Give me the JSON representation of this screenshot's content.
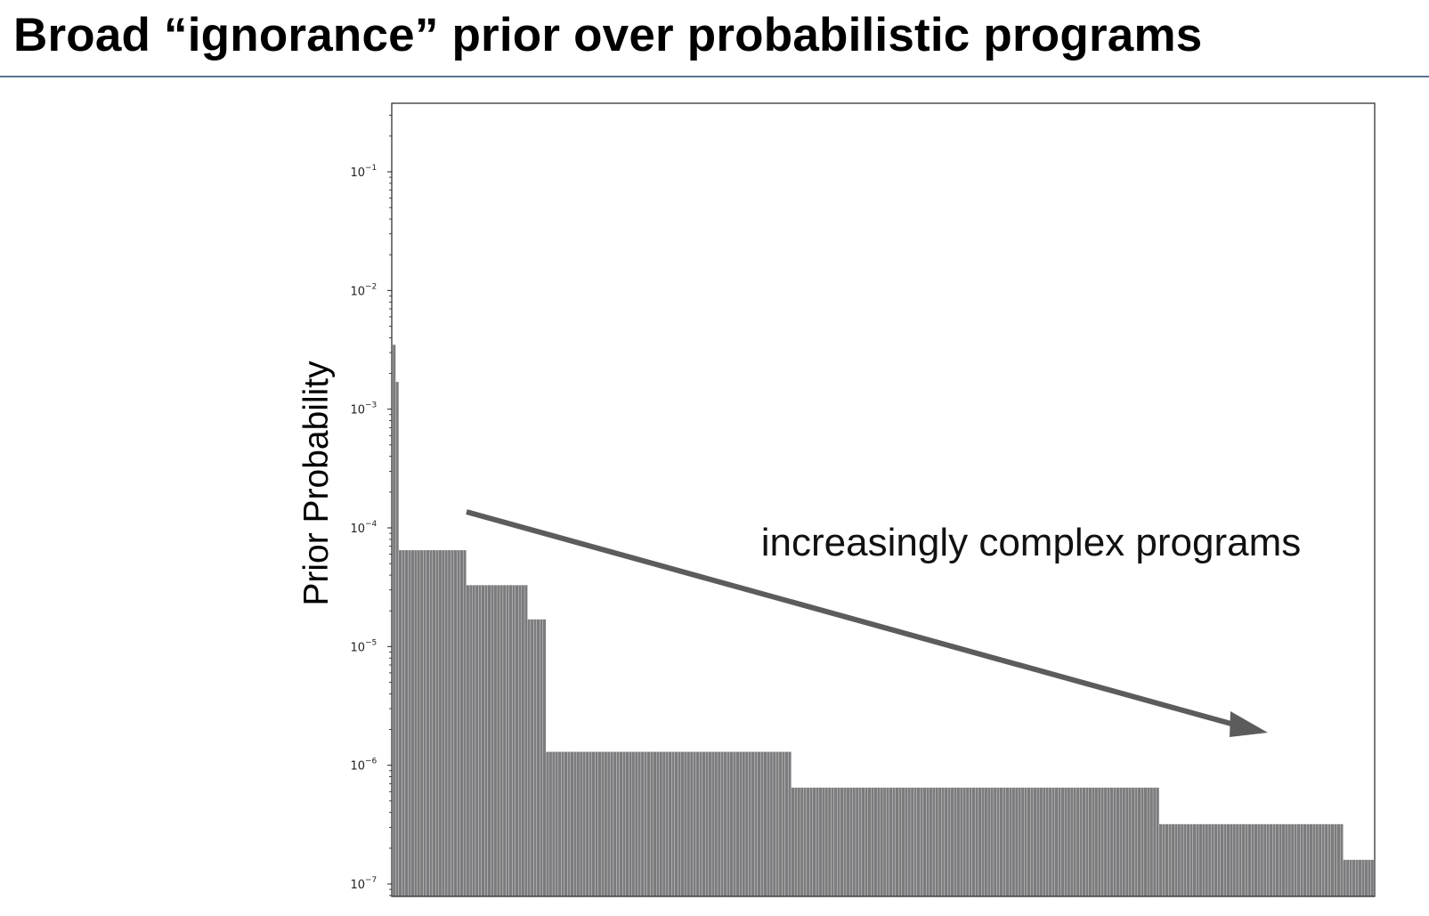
{
  "slide": {
    "title": "Broad “ignorance” prior over probabilistic programs"
  },
  "chart_data": {
    "type": "bar",
    "ylabel": "Prior Probability",
    "xlabel": "",
    "yscale": "log",
    "ylim": [
      8e-08,
      0.4
    ],
    "ytick_bases": [
      "10",
      "10",
      "10",
      "10",
      "10",
      "10",
      "10"
    ],
    "ytick_exponents": [
      "−1",
      "−2",
      "−3",
      "−4",
      "−5",
      "−6",
      "−7"
    ],
    "ytick_values": [
      0.1,
      0.01,
      0.001,
      0.0001,
      1e-05,
      1e-06,
      1e-07
    ],
    "annotation": "increasingly complex programs",
    "bar_color": "#7c7b7d",
    "series": [
      {
        "segments": [
          {
            "count": 1,
            "value": 0.0035
          },
          {
            "count": 1,
            "value": 0.0017
          },
          {
            "count": 22,
            "value": 6.5e-05
          },
          {
            "count": 20,
            "value": 3.3e-05
          },
          {
            "count": 6,
            "value": 1.7e-05
          },
          {
            "count": 80,
            "value": 1.3e-06
          },
          {
            "count": 120,
            "value": 6.5e-07
          },
          {
            "count": 60,
            "value": 3.2e-07
          },
          {
            "count": 10,
            "value": 1.6e-07
          }
        ]
      }
    ]
  }
}
